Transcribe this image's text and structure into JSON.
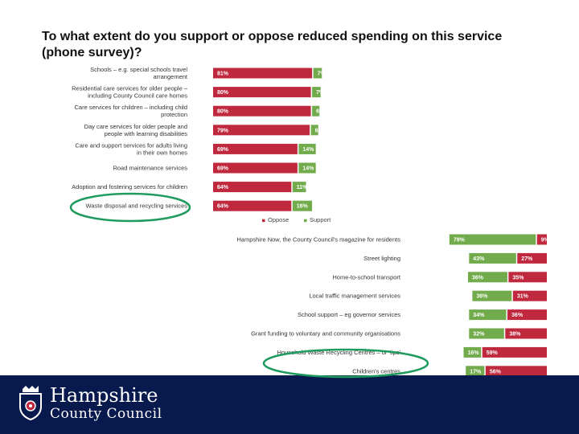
{
  "slide": {
    "title": "To what extent do you support or oppose reduced spending on this service (phone survey)?"
  },
  "footer": {
    "logo_line1": "Hampshire",
    "logo_line2": "County Council"
  },
  "colors": {
    "oppose": "#c0283e",
    "support": "#72ab4c",
    "footer_bg": "#081a4d",
    "highlight_ellipse": "#1e9a5e"
  },
  "chart_data": [
    {
      "type": "bar",
      "orientation": "horizontal",
      "stacked": true,
      "categories": [
        "Schools – e.g. special schools travel arrangement",
        "Residential care services for older people – including County Council care homes",
        "Care services for children – including child protection",
        "Day care services for older people and people with learning disabilities",
        "Care and support services for adults living in their own homes",
        "Road maintenance services",
        "Adoption and fostering services for children",
        "Waste disposal and recycling services"
      ],
      "series": [
        {
          "name": "Oppose",
          "color": "#c0283e",
          "values": [
            81,
            80,
            80,
            79,
            69,
            69,
            64,
            64
          ]
        },
        {
          "name": "Support",
          "color": "#72ab4c",
          "values": [
            7,
            7,
            6,
            6,
            14,
            14,
            11,
            16
          ]
        }
      ],
      "value_labels": {
        "Oppose": [
          "81%",
          "80%",
          "80%",
          "79%",
          "69%",
          "69%",
          "64%",
          "64%"
        ],
        "Support": [
          "7%",
          "7%",
          "6%",
          "6%",
          "14%",
          "14%",
          "11%",
          "16%"
        ]
      },
      "legend": [
        "Oppose",
        "Support"
      ],
      "legend_position": "bottom",
      "highlighted_category": "Waste disposal and recycling services"
    },
    {
      "type": "bar",
      "orientation": "horizontal",
      "stacked": true,
      "categories": [
        "Hampshire Now, the County Council's magazine for residents",
        "Street lighting",
        "Home-to-school transport",
        "Local traffic management services",
        "School support – eg governor services",
        "Grant funding to voluntary and community organisations",
        "Household Waste Recycling Centres – or 'tips'",
        "Children's centres"
      ],
      "series": [
        {
          "name": "Support",
          "color": "#72ab4c",
          "values": [
            79,
            43,
            36,
            36,
            34,
            32,
            16,
            17
          ]
        },
        {
          "name": "Oppose",
          "color": "#c0283e",
          "values": [
            9,
            27,
            35,
            31,
            36,
            38,
            59,
            56
          ]
        }
      ],
      "value_labels": {
        "Support": [
          "79%",
          "43%",
          "36%",
          "36%",
          "34%",
          "32%",
          "16%",
          "17%"
        ],
        "Oppose": [
          "9%",
          "27%",
          "35%",
          "31%",
          "36%",
          "38%",
          "59%",
          "56%"
        ]
      },
      "legend": [
        "Support",
        "Oppose"
      ],
      "legend_position": "bottom",
      "highlighted_category": "Household Waste Recycling Centres – or 'tips'"
    }
  ]
}
